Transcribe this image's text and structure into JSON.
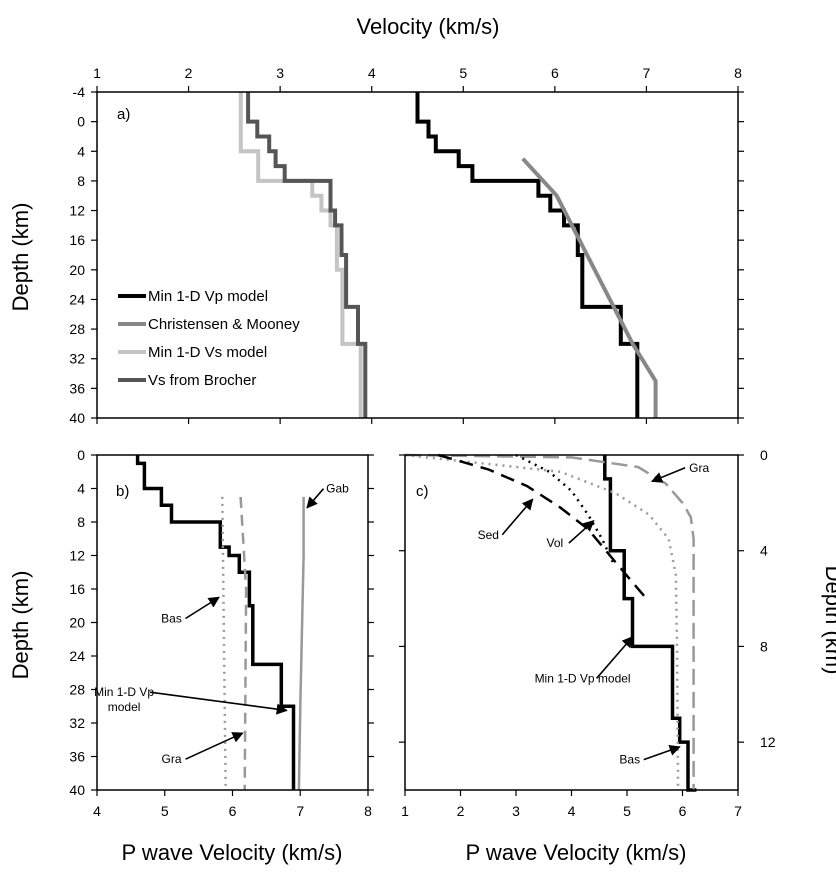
{
  "chart_data": [
    {
      "type": "line",
      "panel_label": "a)",
      "top_axis_title": "Velocity (km/s)",
      "ylabel": "Depth (km)",
      "xlim": [
        1,
        8
      ],
      "ylim": [
        -4,
        40
      ],
      "x_ticks": [
        "1",
        "2",
        "3",
        "4",
        "5",
        "6",
        "7",
        "8"
      ],
      "y_ticks": [
        "-4",
        "0",
        "4",
        "8",
        "12",
        "16",
        "20",
        "24",
        "28",
        "32",
        "36",
        "40"
      ],
      "legend_position": "left",
      "series": [
        {
          "name": "Min 1-D Vp  model",
          "color": "#000000",
          "step": true,
          "points": [
            [
              4.5,
              -4
            ],
            [
              4.5,
              0
            ],
            [
              4.62,
              0
            ],
            [
              4.62,
              2
            ],
            [
              4.7,
              2
            ],
            [
              4.7,
              4
            ],
            [
              4.95,
              4
            ],
            [
              4.95,
              6
            ],
            [
              5.1,
              6
            ],
            [
              5.1,
              8
            ],
            [
              5.82,
              8
            ],
            [
              5.82,
              10
            ],
            [
              5.95,
              10
            ],
            [
              5.95,
              12
            ],
            [
              6.1,
              12
            ],
            [
              6.1,
              14
            ],
            [
              6.25,
              14
            ],
            [
              6.25,
              18
            ],
            [
              6.3,
              18
            ],
            [
              6.3,
              25
            ],
            [
              6.72,
              25
            ],
            [
              6.72,
              30
            ],
            [
              6.9,
              30
            ],
            [
              6.9,
              40
            ]
          ]
        },
        {
          "name": "Christensen & Mooney",
          "color": "#888888",
          "step": false,
          "points": [
            [
              5.65,
              5
            ],
            [
              6.02,
              10
            ],
            [
              6.85,
              30
            ],
            [
              7.1,
              35
            ],
            [
              7.1,
              40
            ]
          ]
        },
        {
          "name": "Min 1-D Vs model",
          "color": "#c4c4c4",
          "step": true,
          "points": [
            [
              2.57,
              -4
            ],
            [
              2.57,
              4
            ],
            [
              2.76,
              4
            ],
            [
              2.76,
              8
            ],
            [
              3.35,
              8
            ],
            [
              3.35,
              10
            ],
            [
              3.45,
              10
            ],
            [
              3.45,
              12
            ],
            [
              3.55,
              12
            ],
            [
              3.55,
              14
            ],
            [
              3.62,
              14
            ],
            [
              3.62,
              20
            ],
            [
              3.68,
              20
            ],
            [
              3.68,
              30
            ],
            [
              3.88,
              30
            ],
            [
              3.88,
              40
            ]
          ]
        },
        {
          "name": "Vs from Brocher",
          "color": "#555555",
          "step": true,
          "points": [
            [
              2.65,
              -4
            ],
            [
              2.65,
              0
            ],
            [
              2.75,
              0
            ],
            [
              2.75,
              2
            ],
            [
              2.88,
              2
            ],
            [
              2.88,
              4
            ],
            [
              2.95,
              4
            ],
            [
              2.95,
              6
            ],
            [
              3.05,
              6
            ],
            [
              3.05,
              8
            ],
            [
              3.55,
              8
            ],
            [
              3.55,
              12
            ],
            [
              3.6,
              12
            ],
            [
              3.6,
              14
            ],
            [
              3.67,
              14
            ],
            [
              3.67,
              18
            ],
            [
              3.72,
              18
            ],
            [
              3.72,
              25
            ],
            [
              3.85,
              25
            ],
            [
              3.85,
              30
            ],
            [
              3.93,
              30
            ],
            [
              3.93,
              40
            ]
          ]
        }
      ]
    },
    {
      "type": "line",
      "panel_label": "b)",
      "xlabel": "P wave Velocity (km/s)",
      "ylabel": "Depth (km)",
      "xlim": [
        4,
        8
      ],
      "ylim": [
        0,
        40
      ],
      "x_ticks": [
        "4",
        "5",
        "6",
        "7",
        "8"
      ],
      "y_ticks": [
        "0",
        "4",
        "8",
        "12",
        "16",
        "20",
        "24",
        "28",
        "32",
        "36",
        "40"
      ],
      "series": [
        {
          "name": "",
          "color": "#000000",
          "step": true,
          "dash": "",
          "points": [
            [
              4.6,
              0
            ],
            [
              4.6,
              1
            ],
            [
              4.7,
              1
            ],
            [
              4.7,
              4
            ],
            [
              4.95,
              4
            ],
            [
              4.95,
              6
            ],
            [
              5.1,
              6
            ],
            [
              5.1,
              8
            ],
            [
              5.82,
              8
            ],
            [
              5.82,
              11
            ],
            [
              5.95,
              11
            ],
            [
              5.95,
              12
            ],
            [
              6.1,
              12
            ],
            [
              6.1,
              14
            ],
            [
              6.25,
              14
            ],
            [
              6.25,
              18
            ],
            [
              6.3,
              18
            ],
            [
              6.3,
              25
            ],
            [
              6.72,
              25
            ],
            [
              6.72,
              30
            ],
            [
              6.9,
              30
            ],
            [
              6.9,
              40
            ]
          ]
        },
        {
          "name": "",
          "color": "#999999",
          "step": false,
          "dash": "2,5",
          "points": [
            [
              5.85,
              5
            ],
            [
              5.9,
              40
            ]
          ]
        },
        {
          "name": "",
          "color": "#999999",
          "step": false,
          "dash": "11,7",
          "points": [
            [
              6.12,
              5
            ],
            [
              6.2,
              16
            ],
            [
              6.18,
              40
            ]
          ]
        },
        {
          "name": "",
          "color": "#999999",
          "step": false,
          "dash": "",
          "points": [
            [
              7.05,
              5
            ],
            [
              7.05,
              12
            ],
            [
              7.0,
              30
            ],
            [
              6.98,
              40
            ]
          ]
        }
      ],
      "annotations": [
        {
          "lines": [
            "Gab"
          ],
          "x": 7.55,
          "y": 4.5,
          "arrow_to": [
            7.1,
            6.3
          ]
        },
        {
          "lines": [
            "Bas"
          ],
          "x": 5.1,
          "y": 20,
          "arrow_to": [
            5.8,
            17
          ]
        },
        {
          "lines": [
            "Min 1-D Vp",
            "model"
          ],
          "x": 4.4,
          "y": 28.8,
          "arrow_to": [
            6.8,
            30.5
          ]
        },
        {
          "lines": [
            "Gra"
          ],
          "x": 5.1,
          "y": 36.8,
          "arrow_to": [
            6.15,
            33.2
          ]
        }
      ]
    },
    {
      "type": "line",
      "panel_label": "c)",
      "xlabel": "P wave Velocity (km/s)",
      "ylabel": "Depth (km)",
      "xlim": [
        1,
        7
      ],
      "ylim": [
        0,
        14
      ],
      "x_ticks": [
        "1",
        "2",
        "3",
        "4",
        "5",
        "6",
        "7"
      ],
      "y_ticks": [
        "0",
        "4",
        "8",
        "12"
      ],
      "series": [
        {
          "name": "",
          "color": "#000000",
          "step": true,
          "dash": "",
          "points": [
            [
              4.6,
              0
            ],
            [
              4.6,
              1
            ],
            [
              4.7,
              1
            ],
            [
              4.7,
              4
            ],
            [
              4.95,
              4
            ],
            [
              4.95,
              6
            ],
            [
              5.1,
              6
            ],
            [
              5.1,
              8
            ],
            [
              5.82,
              8
            ],
            [
              5.82,
              11
            ],
            [
              5.95,
              11
            ],
            [
              5.95,
              12
            ],
            [
              6.1,
              12
            ],
            [
              6.1,
              14
            ],
            [
              6.25,
              14
            ]
          ]
        },
        {
          "name": "",
          "color": "#999999",
          "step": false,
          "dash": "16,7",
          "points": [
            [
              1,
              0
            ],
            [
              4,
              0.1
            ],
            [
              5.2,
              0.5
            ],
            [
              5.7,
              1.2
            ],
            [
              6.0,
              2.0
            ],
            [
              6.15,
              2.6
            ],
            [
              6.2,
              3.5
            ],
            [
              6.2,
              14
            ]
          ]
        },
        {
          "name": "",
          "color": "#999999",
          "step": false,
          "dash": "2,5",
          "points": [
            [
              1,
              0
            ],
            [
              3.8,
              0.7
            ],
            [
              4.8,
              1.6
            ],
            [
              5.4,
              2.5
            ],
            [
              5.75,
              3.5
            ],
            [
              5.88,
              5
            ],
            [
              5.9,
              8
            ],
            [
              5.92,
              14
            ]
          ]
        },
        {
          "name": "",
          "color": "#000000",
          "step": false,
          "dash": "14,8",
          "points": [
            [
              1.6,
              0
            ],
            [
              2.5,
              0.6
            ],
            [
              3.2,
              1.3
            ],
            [
              3.8,
              2.2
            ],
            [
              4.3,
              3.1
            ],
            [
              4.8,
              4.5
            ],
            [
              5.35,
              6.0
            ]
          ]
        },
        {
          "name": "",
          "color": "#000000",
          "step": false,
          "dash": "2,5",
          "points": [
            [
              3.0,
              0
            ],
            [
              3.6,
              0.7
            ],
            [
              4.0,
              1.5
            ],
            [
              4.3,
              2.5
            ],
            [
              4.55,
              3.5
            ],
            [
              4.75,
              4.5
            ]
          ]
        }
      ],
      "annotations": [
        {
          "lines": [
            "Gra"
          ],
          "x": 6.3,
          "y": 0.7,
          "arrow_to": [
            5.45,
            1.1
          ]
        },
        {
          "lines": [
            "Sed"
          ],
          "x": 2.5,
          "y": 3.5,
          "arrow_to": [
            3.3,
            1.85
          ]
        },
        {
          "lines": [
            "Vol"
          ],
          "x": 3.7,
          "y": 3.85,
          "arrow_to": [
            4.4,
            2.75
          ]
        },
        {
          "lines": [
            "Min 1-D Vp model"
          ],
          "x": 4.2,
          "y": 9.5,
          "arrow_to": [
            5.1,
            7.6
          ]
        },
        {
          "lines": [
            "Bas"
          ],
          "x": 5.05,
          "y": 12.9,
          "arrow_to": [
            5.95,
            12.2
          ]
        }
      ]
    }
  ]
}
